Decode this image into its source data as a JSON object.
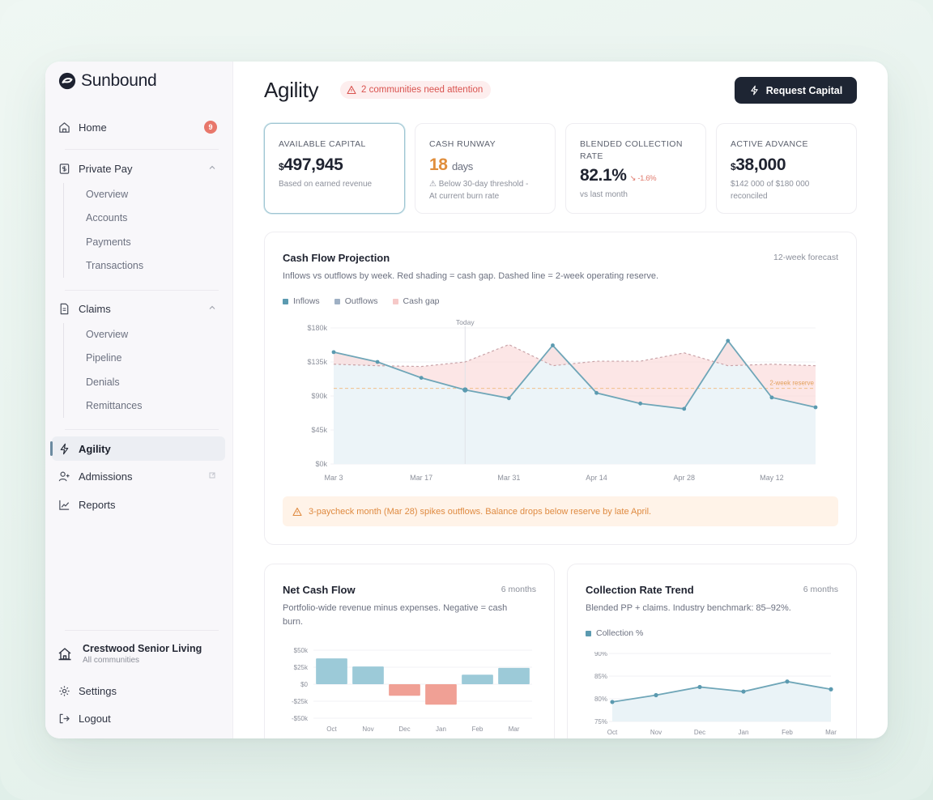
{
  "app": {
    "name": "Sunbound"
  },
  "colors": {
    "accent": "#8fc0cf",
    "inflow": "#5b9ab0",
    "outflow": "#9fb0c4",
    "gap": "#f6c9c8",
    "danger": "#d9534f",
    "warning": "#df8a40"
  },
  "sidebar": {
    "home": {
      "label": "Home",
      "badge": "9"
    },
    "private_pay": {
      "label": "Private Pay",
      "items": [
        "Overview",
        "Accounts",
        "Payments",
        "Transactions"
      ]
    },
    "claims": {
      "label": "Claims",
      "items": [
        "Overview",
        "Pipeline",
        "Denials",
        "Remittances"
      ]
    },
    "agility": {
      "label": "Agility"
    },
    "admissions": {
      "label": "Admissions"
    },
    "reports": {
      "label": "Reports"
    },
    "org": {
      "name": "Crestwood Senior Living",
      "sub": "All communities"
    },
    "settings": {
      "label": "Settings"
    },
    "logout": {
      "label": "Logout"
    }
  },
  "header": {
    "title": "Agility",
    "alert": "2 communities need attention",
    "request_button": "Request Capital"
  },
  "kpis": [
    {
      "label": "Available Capital",
      "currency": "$",
      "value": "497,945",
      "sub": "Based on earned revenue"
    },
    {
      "label": "Cash Runway",
      "value": "18",
      "unit": "days",
      "sub1": "⚠ Below 30-day threshold -",
      "sub2": "At current burn rate"
    },
    {
      "label": "Blended Collection Rate",
      "value": "82.1%",
      "delta": "↘ -1.6%",
      "sub": "vs last month"
    },
    {
      "label": "Active Advance",
      "currency": "$",
      "value": "38,000",
      "sub1": "$142 000 of $180 000",
      "sub2": "reconciled"
    }
  ],
  "cashflow": {
    "title": "Cash Flow Projection",
    "meta": "12-week forecast",
    "desc": "Inflows vs outflows by week. Red shading = cash gap. Dashed line = 2-week operating reserve.",
    "legend": [
      "Inflows",
      "Outflows",
      "Cash gap"
    ],
    "today_label": "Today",
    "reserve_label": "2-week reserve",
    "warning": "3-paycheck month (Mar 28) spikes outflows. Balance drops below reserve by late April."
  },
  "netcash": {
    "title": "Net Cash Flow",
    "meta": "6 months",
    "desc": "Portfolio-wide revenue minus expenses. Negative = cash burn."
  },
  "collection": {
    "title": "Collection Rate Trend",
    "meta": "6 months",
    "desc": "Blended PP + claims. Industry benchmark: 85–92%.",
    "legend": "Collection %"
  },
  "chart_data": [
    {
      "type": "line",
      "title": "Cash Flow Projection",
      "ylim": [
        0,
        180000
      ],
      "yticks": [
        "$0k",
        "$45k",
        "$90k",
        "$135k",
        "$180k"
      ],
      "xticks": [
        "Mar 3",
        "Mar 17",
        "Mar 31",
        "Apr 14",
        "Apr 28",
        "May 12"
      ],
      "reserve": 100000,
      "series": [
        {
          "name": "Inflows",
          "values": [
            148000,
            135000,
            114000,
            98000,
            87000,
            157000,
            94000,
            80000,
            73000,
            163000,
            88000,
            75000
          ]
        },
        {
          "name": "Outflows",
          "values": [
            132000,
            130000,
            129000,
            135000,
            158000,
            130000,
            136000,
            136000,
            147000,
            130000,
            132000,
            130000
          ]
        }
      ]
    },
    {
      "type": "bar",
      "title": "Net Cash Flow",
      "categories": [
        "Oct",
        "Nov",
        "Dec",
        "Jan",
        "Feb",
        "Mar"
      ],
      "values": [
        38000,
        26000,
        -17000,
        -30000,
        14000,
        24000
      ],
      "ylim": [
        -50000,
        50000
      ],
      "yticks": [
        "$50k",
        "$25k",
        "$0",
        "-$25k",
        "-$50k"
      ]
    },
    {
      "type": "area",
      "title": "Collection Rate Trend",
      "categories": [
        "Oct",
        "Nov",
        "Dec",
        "Jan",
        "Feb",
        "Mar"
      ],
      "values": [
        79.3,
        80.8,
        82.6,
        81.6,
        83.8,
        82.1
      ],
      "ylim": [
        75,
        90
      ],
      "yticks": [
        "90%",
        "85%",
        "80%",
        "75%"
      ]
    }
  ]
}
